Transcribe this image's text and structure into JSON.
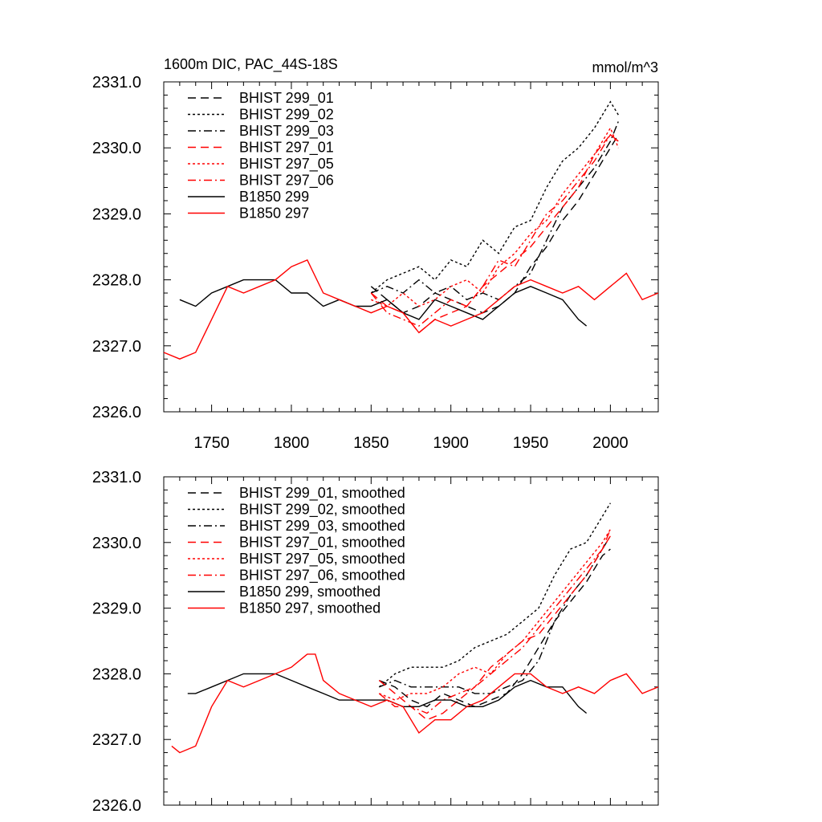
{
  "colors": {
    "black": "#000000",
    "red": "#ff0000"
  },
  "chart_data": [
    {
      "type": "line",
      "title_left": "1600m DIC, PAC_44S-18S",
      "title_right": "mmol/m^3",
      "xlim": [
        1720,
        2030
      ],
      "ylim": [
        2326.0,
        2331.0
      ],
      "xticks": [
        1750,
        1800,
        1850,
        1900,
        1950,
        2000
      ],
      "xtick_labels": [
        "1750",
        "1800",
        "1850",
        "1900",
        "1950",
        "2000"
      ],
      "yticks": [
        2326,
        2327,
        2328,
        2329,
        2330,
        2331
      ],
      "ytick_labels": [
        "2326.0",
        "2327.0",
        "2328.0",
        "2329.0",
        "2330.0",
        "2331.0"
      ],
      "series": [
        {
          "name": "BHIST 299_01",
          "color": "black",
          "dash": "dash",
          "x": [
            1850,
            1860,
            1870,
            1880,
            1890,
            1900,
            1910,
            1920,
            1930,
            1940,
            1950,
            1960,
            1970,
            1980,
            1990,
            2000,
            2005
          ],
          "y": [
            2327.9,
            2327.7,
            2327.5,
            2327.6,
            2327.8,
            2327.7,
            2327.6,
            2327.5,
            2327.6,
            2327.8,
            2328.2,
            2328.5,
            2328.9,
            2329.2,
            2329.6,
            2330.0,
            2330.2
          ]
        },
        {
          "name": "BHIST 299_02",
          "color": "black",
          "dash": "dot",
          "x": [
            1850,
            1860,
            1870,
            1880,
            1890,
            1900,
            1910,
            1920,
            1930,
            1940,
            1950,
            1960,
            1970,
            1980,
            1990,
            2000,
            2005
          ],
          "y": [
            2327.8,
            2328.0,
            2328.1,
            2328.2,
            2328.0,
            2328.3,
            2328.2,
            2328.6,
            2328.4,
            2328.8,
            2328.9,
            2329.4,
            2329.8,
            2330.0,
            2330.3,
            2330.7,
            2330.5
          ]
        },
        {
          "name": "BHIST 299_03",
          "color": "black",
          "dash": "dashdot",
          "x": [
            1850,
            1860,
            1870,
            1880,
            1890,
            1900,
            1910,
            1920,
            1930,
            1940,
            1950,
            1960,
            1970,
            1980,
            1990,
            2000,
            2005
          ],
          "y": [
            2327.8,
            2327.9,
            2327.8,
            2328.0,
            2327.8,
            2327.9,
            2327.7,
            2327.8,
            2327.7,
            2327.9,
            2328.1,
            2328.6,
            2329.1,
            2329.4,
            2329.7,
            2330.1,
            2330.4
          ]
        },
        {
          "name": "BHIST 297_01",
          "color": "red",
          "dash": "dash",
          "x": [
            1850,
            1860,
            1870,
            1880,
            1890,
            1900,
            1910,
            1920,
            1930,
            1940,
            1950,
            1960,
            1970,
            1980,
            1990,
            2000,
            2005
          ],
          "y": [
            2327.8,
            2327.6,
            2327.5,
            2327.2,
            2327.4,
            2327.5,
            2327.6,
            2327.9,
            2328.1,
            2328.3,
            2328.5,
            2328.8,
            2329.1,
            2329.4,
            2329.9,
            2330.2,
            2330.1
          ]
        },
        {
          "name": "BHIST 297_05",
          "color": "red",
          "dash": "dot",
          "x": [
            1850,
            1860,
            1870,
            1880,
            1890,
            1900,
            1910,
            1920,
            1930,
            1940,
            1950,
            1960,
            1970,
            1980,
            1990,
            2000,
            2005
          ],
          "y": [
            2327.7,
            2327.6,
            2327.8,
            2327.6,
            2327.7,
            2327.9,
            2328.0,
            2327.8,
            2328.2,
            2328.4,
            2328.7,
            2328.9,
            2329.3,
            2329.6,
            2329.9,
            2330.3,
            2330.0
          ]
        },
        {
          "name": "BHIST 297_06",
          "color": "red",
          "dash": "dashdot",
          "x": [
            1850,
            1860,
            1870,
            1880,
            1890,
            1900,
            1910,
            1920,
            1930,
            1940,
            1950,
            1960,
            1970,
            1980,
            1990,
            2000,
            2005
          ],
          "y": [
            2327.8,
            2327.5,
            2327.4,
            2327.3,
            2327.5,
            2327.7,
            2327.6,
            2327.9,
            2328.3,
            2328.2,
            2328.6,
            2329.0,
            2329.2,
            2329.5,
            2329.8,
            2330.2,
            2330.1
          ]
        },
        {
          "name": "B1850 299",
          "color": "black",
          "dash": "solid",
          "x": [
            1730,
            1740,
            1750,
            1760,
            1770,
            1780,
            1790,
            1800,
            1810,
            1820,
            1830,
            1840,
            1850,
            1860,
            1870,
            1880,
            1890,
            1900,
            1910,
            1920,
            1930,
            1940,
            1950,
            1960,
            1970,
            1980,
            1985
          ],
          "y": [
            2327.7,
            2327.6,
            2327.8,
            2327.9,
            2328.0,
            2328.0,
            2328.0,
            2327.8,
            2327.8,
            2327.6,
            2327.7,
            2327.6,
            2327.6,
            2327.7,
            2327.5,
            2327.4,
            2327.7,
            2327.6,
            2327.5,
            2327.4,
            2327.6,
            2327.8,
            2327.9,
            2327.8,
            2327.7,
            2327.4,
            2327.3
          ]
        },
        {
          "name": "B1850 297",
          "color": "red",
          "dash": "solid",
          "x": [
            1720,
            1730,
            1740,
            1750,
            1760,
            1770,
            1780,
            1790,
            1800,
            1810,
            1820,
            1830,
            1840,
            1850,
            1860,
            1870,
            1880,
            1890,
            1900,
            1910,
            1920,
            1930,
            1940,
            1950,
            1960,
            1970,
            1980,
            1990,
            2000,
            2010,
            2020,
            2030
          ],
          "y": [
            2326.9,
            2326.8,
            2326.9,
            2327.4,
            2327.9,
            2327.8,
            2327.9,
            2328.0,
            2328.2,
            2328.3,
            2327.8,
            2327.7,
            2327.6,
            2327.5,
            2327.6,
            2327.5,
            2327.2,
            2327.4,
            2327.3,
            2327.4,
            2327.5,
            2327.7,
            2327.9,
            2328.0,
            2327.9,
            2327.8,
            2327.9,
            2327.7,
            2327.9,
            2328.1,
            2327.7,
            2327.8
          ]
        }
      ]
    },
    {
      "type": "line",
      "xlim": [
        1720,
        2030
      ],
      "ylim": [
        2326.0,
        2331.0
      ],
      "xticks": [
        1750,
        1800,
        1850,
        1900,
        1950,
        2000
      ],
      "yticks": [
        2326,
        2327,
        2328,
        2329,
        2330,
        2331
      ],
      "ytick_labels": [
        "2326.0",
        "2327.0",
        "2328.0",
        "2329.0",
        "2330.0",
        "2331.0"
      ],
      "series": [
        {
          "name": "BHIST 299_01, smoothed",
          "color": "black",
          "dash": "dash",
          "x": [
            1855,
            1865,
            1875,
            1885,
            1895,
            1905,
            1915,
            1925,
            1935,
            1945,
            1955,
            1965,
            1975,
            1985,
            1995,
            2000
          ],
          "y": [
            2327.9,
            2327.8,
            2327.6,
            2327.5,
            2327.7,
            2327.6,
            2327.5,
            2327.6,
            2327.7,
            2328.0,
            2328.4,
            2328.8,
            2329.1,
            2329.4,
            2329.8,
            2329.9
          ]
        },
        {
          "name": "BHIST 299_02, smoothed",
          "color": "black",
          "dash": "dot",
          "x": [
            1855,
            1865,
            1875,
            1885,
            1895,
            1905,
            1915,
            1925,
            1935,
            1945,
            1955,
            1965,
            1975,
            1985,
            1995,
            2000
          ],
          "y": [
            2327.8,
            2328.0,
            2328.1,
            2328.1,
            2328.1,
            2328.2,
            2328.4,
            2328.5,
            2328.6,
            2328.8,
            2329.0,
            2329.5,
            2329.9,
            2330.0,
            2330.4,
            2330.6
          ]
        },
        {
          "name": "BHIST 299_03, smoothed",
          "color": "black",
          "dash": "dashdot",
          "x": [
            1855,
            1865,
            1875,
            1885,
            1895,
            1905,
            1915,
            1925,
            1935,
            1945,
            1955,
            1965,
            1975,
            1985,
            1995,
            2000
          ],
          "y": [
            2327.8,
            2327.9,
            2327.8,
            2327.8,
            2327.8,
            2327.8,
            2327.7,
            2327.7,
            2327.8,
            2327.9,
            2328.2,
            2328.8,
            2329.2,
            2329.5,
            2329.9,
            2330.1
          ]
        },
        {
          "name": "BHIST 297_01, smoothed",
          "color": "red",
          "dash": "dash",
          "x": [
            1855,
            1865,
            1875,
            1885,
            1895,
            1905,
            1915,
            1925,
            1935,
            1945,
            1955,
            1965,
            1975,
            1985,
            1995,
            2000
          ],
          "y": [
            2327.9,
            2327.7,
            2327.5,
            2327.3,
            2327.4,
            2327.6,
            2327.8,
            2328.1,
            2328.3,
            2328.5,
            2328.6,
            2328.9,
            2329.2,
            2329.5,
            2329.9,
            2330.2
          ]
        },
        {
          "name": "BHIST 297_05, smoothed",
          "color": "red",
          "dash": "dot",
          "x": [
            1855,
            1865,
            1875,
            1885,
            1895,
            1905,
            1915,
            1925,
            1935,
            1945,
            1955,
            1965,
            1975,
            1985,
            1995,
            2000
          ],
          "y": [
            2327.7,
            2327.6,
            2327.7,
            2327.7,
            2327.8,
            2328.0,
            2328.1,
            2328.0,
            2328.3,
            2328.5,
            2328.8,
            2329.1,
            2329.4,
            2329.7,
            2330.0,
            2330.2
          ]
        },
        {
          "name": "BHIST 297_06, smoothed",
          "color": "red",
          "dash": "dashdot",
          "x": [
            1855,
            1865,
            1875,
            1885,
            1895,
            1905,
            1915,
            1925,
            1935,
            1945,
            1955,
            1965,
            1975,
            1985,
            1995,
            2000
          ],
          "y": [
            2327.7,
            2327.5,
            2327.5,
            2327.4,
            2327.6,
            2327.7,
            2327.8,
            2328.0,
            2328.2,
            2328.4,
            2328.7,
            2329.0,
            2329.3,
            2329.6,
            2329.9,
            2330.1
          ]
        },
        {
          "name": "B1850 299, smoothed",
          "color": "black",
          "dash": "solid",
          "x": [
            1735,
            1740,
            1750,
            1760,
            1770,
            1780,
            1790,
            1800,
            1810,
            1820,
            1830,
            1840,
            1850,
            1860,
            1870,
            1880,
            1890,
            1900,
            1910,
            1920,
            1930,
            1940,
            1950,
            1960,
            1970,
            1980,
            1985
          ],
          "y": [
            2327.7,
            2327.7,
            2327.8,
            2327.9,
            2328.0,
            2328.0,
            2328.0,
            2327.9,
            2327.8,
            2327.7,
            2327.6,
            2327.6,
            2327.6,
            2327.6,
            2327.5,
            2327.5,
            2327.6,
            2327.6,
            2327.5,
            2327.5,
            2327.6,
            2327.8,
            2327.9,
            2327.8,
            2327.8,
            2327.5,
            2327.4
          ]
        },
        {
          "name": "B1850 297, smoothed",
          "color": "red",
          "dash": "solid",
          "x": [
            1725,
            1730,
            1740,
            1750,
            1760,
            1770,
            1780,
            1790,
            1800,
            1810,
            1815,
            1820,
            1830,
            1840,
            1850,
            1860,
            1870,
            1880,
            1890,
            1900,
            1910,
            1920,
            1930,
            1940,
            1950,
            1960,
            1970,
            1980,
            1990,
            2000,
            2010,
            2020,
            2030
          ],
          "y": [
            2326.9,
            2326.8,
            2326.9,
            2327.5,
            2327.9,
            2327.8,
            2327.9,
            2328.0,
            2328.1,
            2328.3,
            2328.3,
            2327.9,
            2327.7,
            2327.6,
            2327.5,
            2327.6,
            2327.5,
            2327.1,
            2327.3,
            2327.3,
            2327.5,
            2327.6,
            2327.8,
            2328.0,
            2328.0,
            2327.8,
            2327.7,
            2327.8,
            2327.7,
            2327.9,
            2328.0,
            2327.7,
            2327.8
          ]
        }
      ]
    }
  ]
}
